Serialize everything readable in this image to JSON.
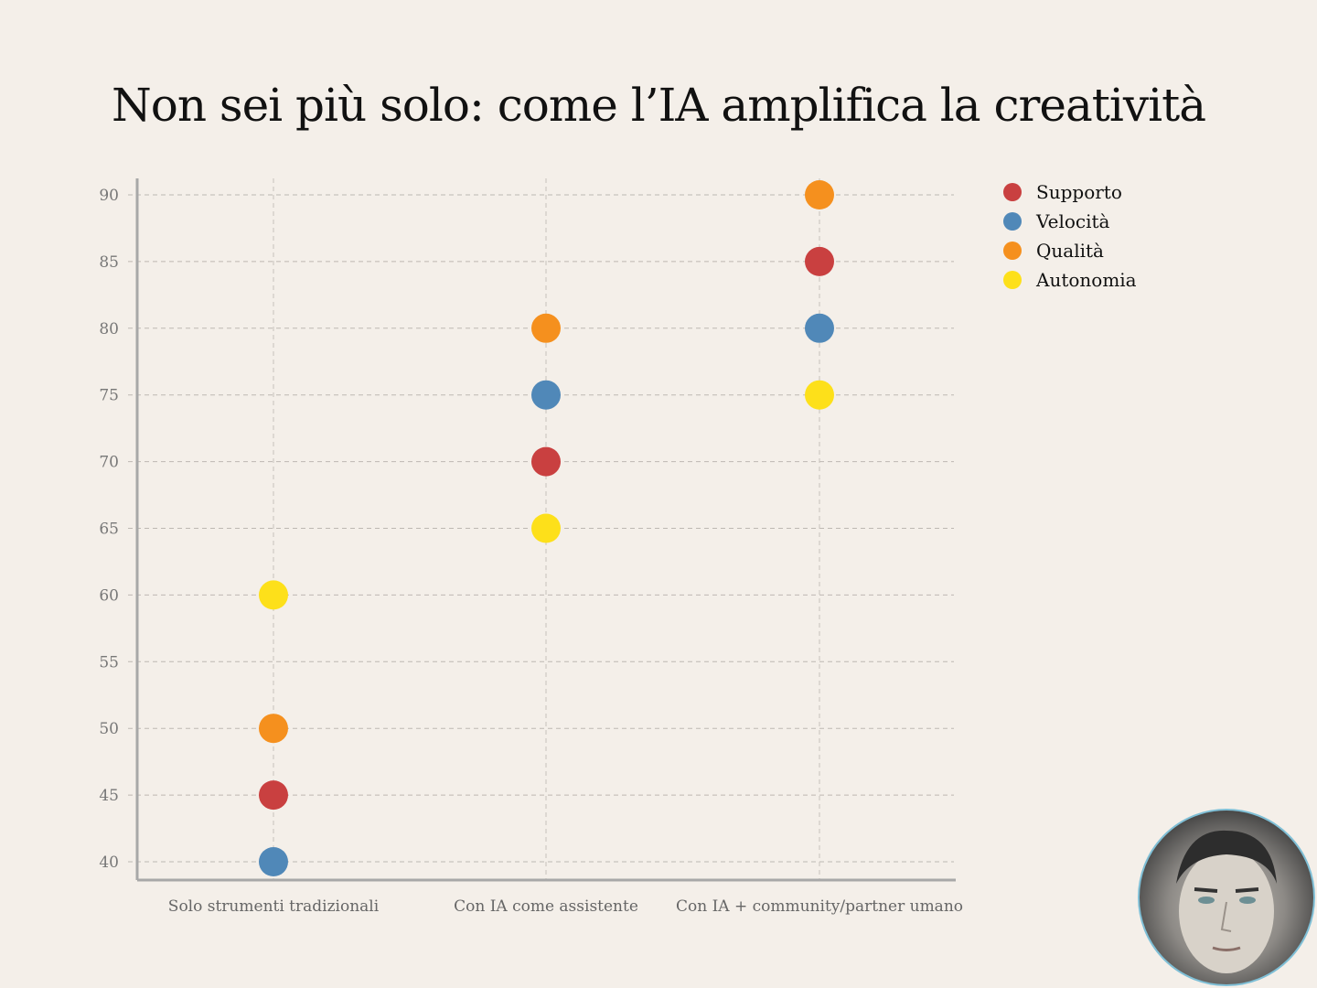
{
  "chart_data": {
    "type": "scatter",
    "title": "Non sei più solo: come l’IA amplifica la creatività",
    "categories": [
      "Solo strumenti tradizionali",
      "Con IA come assistente",
      "Con IA + community/partner umano"
    ],
    "yticks": [
      "40",
      "45",
      "50",
      "55",
      "60",
      "65",
      "70",
      "75",
      "80",
      "85",
      "90"
    ],
    "ylim": [
      40,
      90
    ],
    "grid": true,
    "legend_position": "top-right",
    "series": [
      {
        "name": "Supporto",
        "color": "#c94040",
        "values": [
          45,
          70,
          85
        ]
      },
      {
        "name": "Velocità",
        "color": "#5088b8",
        "values": [
          40,
          75,
          80
        ]
      },
      {
        "name": "Qualità",
        "color": "#f5901e",
        "values": [
          50,
          80,
          90
        ]
      },
      {
        "name": "Autonomia",
        "color": "#fde01a",
        "values": [
          60,
          65,
          75
        ]
      }
    ]
  }
}
